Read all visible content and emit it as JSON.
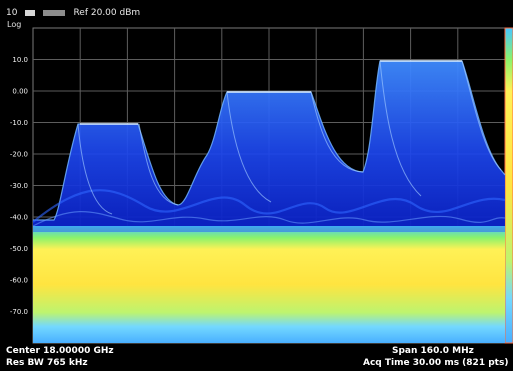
{
  "header": {
    "ref_level": "Ref 20.00 dBm",
    "scale_mode": "Log",
    "level_unit": "10"
  },
  "y_axis": {
    "ticks": [
      "10.0",
      "0.00",
      "-10.0",
      "-20.0",
      "-30.0",
      "-40.0",
      "-50.0",
      "-60.0",
      "-70.0"
    ]
  },
  "footer": {
    "center": "Center 18.00000 GHz",
    "res_bw": "Res BW 765 kHz",
    "span": "Span 160.0 MHz",
    "acq_time": "Acq Time  30.00 ms (821 pts)"
  },
  "colors": {
    "background": "#000000",
    "grid": "#6a6a6a",
    "trace_blue": "#2c6cff",
    "trace_deep_blue": "#0b24d8",
    "heat_yellow": "#ffe33d",
    "heat_cyan": "#5fd4ff",
    "heat_green": "#7dff5a"
  }
}
